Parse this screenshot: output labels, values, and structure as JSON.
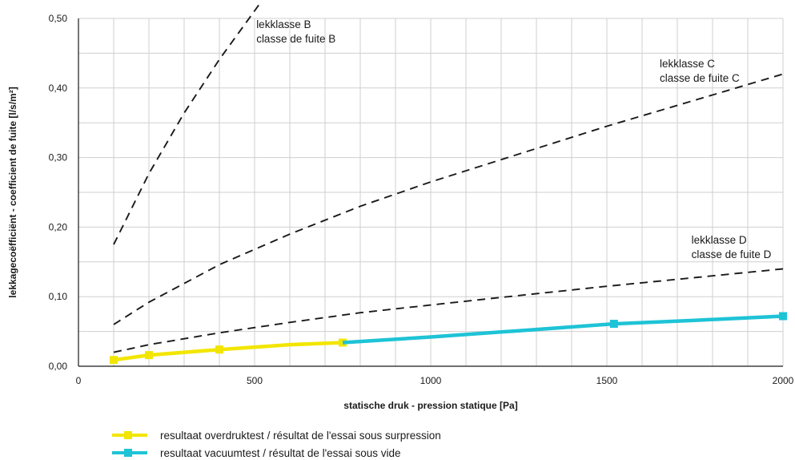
{
  "chart_data": {
    "type": "line",
    "xlabel": "statische druk - pression statique [Pa]",
    "ylabel": "lekkagecoëfficiënt - coefficient de fuite [l/s/m²]",
    "xlim": [
      0,
      2000
    ],
    "ylim": [
      0,
      0.5
    ],
    "x_ticks": [
      {
        "value": 0,
        "label": "0"
      },
      {
        "value": 500,
        "label": "500"
      },
      {
        "value": 1000,
        "label": "1000"
      },
      {
        "value": 1500,
        "label": "1500"
      },
      {
        "value": 2000,
        "label": "2000"
      }
    ],
    "y_ticks": [
      {
        "value": 0.0,
        "label": "0,00"
      },
      {
        "value": 0.1,
        "label": "0,10"
      },
      {
        "value": 0.2,
        "label": "0,20"
      },
      {
        "value": 0.3,
        "label": "0,30"
      },
      {
        "value": 0.4,
        "label": "0,40"
      },
      {
        "value": 0.5,
        "label": "0,50"
      }
    ],
    "grid": {
      "x_step": 100,
      "y_step": 0.05
    },
    "series": [
      {
        "key": "B",
        "style": "dashed",
        "color": "#1a1a1a",
        "x": [
          100,
          200,
          300,
          400,
          500,
          520
        ],
        "y": [
          0.175,
          0.277,
          0.364,
          0.441,
          0.511,
          0.525
        ]
      },
      {
        "key": "C",
        "style": "dashed",
        "color": "#1a1a1a",
        "x": [
          100,
          200,
          400,
          600,
          800,
          1000,
          1200,
          1500,
          1800,
          2000
        ],
        "y": [
          0.06,
          0.092,
          0.146,
          0.19,
          0.23,
          0.265,
          0.297,
          0.345,
          0.39,
          0.42
        ]
      },
      {
        "key": "D",
        "style": "dashed",
        "color": "#1a1a1a",
        "x": [
          100,
          200,
          400,
          600,
          800,
          1000,
          1200,
          1500,
          1800,
          2000
        ],
        "y": [
          0.02,
          0.031,
          0.048,
          0.063,
          0.077,
          0.088,
          0.099,
          0.115,
          0.13,
          0.14
        ]
      },
      {
        "key": "overdruk",
        "name": "resultaat overdruktest / résultat de l'essai sous surpression",
        "style": "solid",
        "color": "#f2e600",
        "x": [
          100,
          200,
          400,
          600,
          750
        ],
        "y": [
          0.009,
          0.016,
          0.024,
          0.031,
          0.034
        ],
        "markers_x": [
          100,
          200,
          400,
          750
        ],
        "markers_y": [
          0.009,
          0.016,
          0.024,
          0.034
        ]
      },
      {
        "key": "vacuum",
        "name": "resultaat vacuumtest / résultat de l'essai sous vide",
        "style": "solid",
        "color": "#1ec3d6",
        "x": [
          750,
          1000,
          1250,
          1520,
          1750,
          2000
        ],
        "y": [
          0.034,
          0.042,
          0.051,
          0.061,
          0.066,
          0.072
        ],
        "markers_x": [
          1520,
          2000
        ],
        "markers_y": [
          0.061,
          0.072
        ]
      }
    ],
    "annotations": [
      {
        "lines": [
          "lekklasse B",
          "classe de fuite B"
        ],
        "x": 505,
        "y": 0.486
      },
      {
        "lines": [
          "lekklasse C",
          "classe de fuite C"
        ],
        "x": 1650,
        "y": 0.43
      },
      {
        "lines": [
          "lekklasse D",
          "classe de fuite D"
        ],
        "x": 1740,
        "y": 0.176
      }
    ]
  },
  "legend": [
    {
      "label": "resultaat overdruktest / résultat de l'essai sous surpression",
      "color": "#f2e600"
    },
    {
      "label": "resultaat vacuumtest / résultat de l'essai sous vide",
      "color": "#1ec3d6"
    }
  ]
}
